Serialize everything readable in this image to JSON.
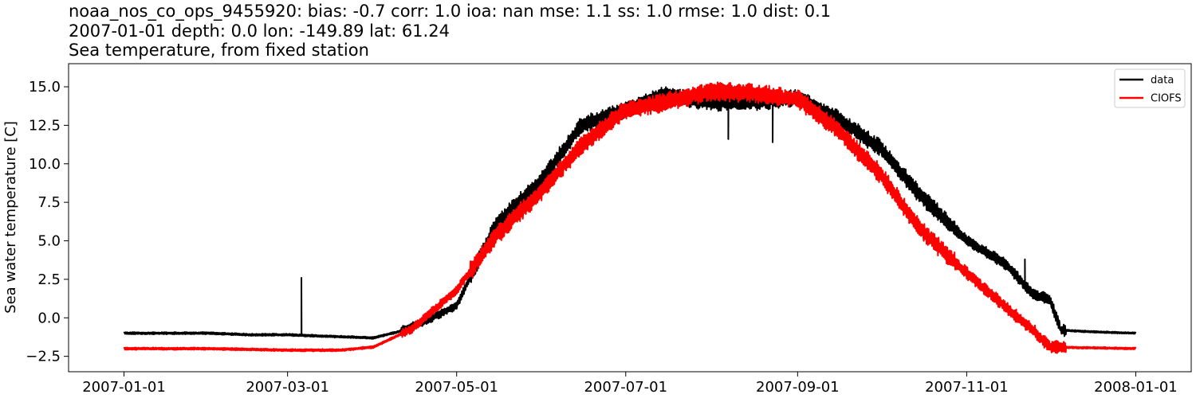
{
  "header": {
    "line1": "noaa_nos_co_ops_9455920: bias: -0.7  corr: 1.0  ioa: nan  mse: 1.1  ss: 1.0  rmse: 1.0  dist: 0.1",
    "line2": "2007-01-01 depth: 0.0 lon: -149.89 lat: 61.24",
    "line3": "Sea temperature, from fixed station"
  },
  "chart_data": {
    "type": "line",
    "title": "noaa_nos_co_ops_9455920: bias: -0.7  corr: 1.0  ioa: nan  mse: 1.1  ss: 1.0  rmse: 1.0  dist: 0.1\n2007-01-01 depth: 0.0 lon: -149.89 lat: 61.24\nSea temperature, from fixed station",
    "xlabel": "",
    "ylabel": "Sea water temperature [C]",
    "xlim": [
      "2006-12-12",
      "2008-01-21"
    ],
    "ylim": [
      -3.5,
      16.5
    ],
    "xticks": [
      "2007-01-01",
      "2007-03-01",
      "2007-05-01",
      "2007-07-01",
      "2007-09-01",
      "2007-11-01",
      "2008-01-01"
    ],
    "yticks": [
      -2.5,
      0.0,
      2.5,
      5.0,
      7.5,
      10.0,
      12.5,
      15.0
    ],
    "ytick_labels": [
      "−2.5",
      "0.0",
      "2.5",
      "5.0",
      "7.5",
      "10.0",
      "12.5",
      "15.0"
    ],
    "grid": false,
    "legend": {
      "position": "top-right",
      "entries": [
        "data",
        "CIOFS"
      ]
    },
    "series": [
      {
        "name": "data",
        "color": "#000000",
        "x": [
          "2007-01-01",
          "2007-01-15",
          "2007-02-01",
          "2007-02-15",
          "2007-03-01",
          "2007-03-15",
          "2007-04-01",
          "2007-04-10",
          "2007-04-20",
          "2007-05-01",
          "2007-05-15",
          "2007-06-01",
          "2007-06-15",
          "2007-07-01",
          "2007-07-15",
          "2007-08-01",
          "2007-08-15",
          "2007-09-01",
          "2007-09-15",
          "2007-10-01",
          "2007-10-15",
          "2007-11-01",
          "2007-11-15",
          "2007-11-25",
          "2007-12-01",
          "2007-12-05",
          "2007-12-15",
          "2008-01-01"
        ],
        "y": [
          -1.0,
          -1.0,
          -1.0,
          -1.1,
          -1.1,
          -1.2,
          -1.3,
          -0.9,
          -0.2,
          0.8,
          6.0,
          9.0,
          12.5,
          13.5,
          14.5,
          14.0,
          14.0,
          14.3,
          13.0,
          11.0,
          8.0,
          5.0,
          3.5,
          1.5,
          1.2,
          -0.8,
          -0.9,
          -1.0
        ],
        "spikes": [
          {
            "x": "2007-03-06",
            "y": 2.6
          },
          {
            "x": "2007-08-07",
            "y": 11.6
          },
          {
            "x": "2007-08-23",
            "y": 11.4
          },
          {
            "x": "2007-11-22",
            "y": 3.8
          }
        ]
      },
      {
        "name": "CIOFS",
        "color": "#ff0000",
        "x": [
          "2007-01-01",
          "2007-02-01",
          "2007-03-01",
          "2007-03-20",
          "2007-04-01",
          "2007-04-15",
          "2007-05-01",
          "2007-05-15",
          "2007-06-01",
          "2007-06-15",
          "2007-07-01",
          "2007-07-15",
          "2007-08-01",
          "2007-08-15",
          "2007-09-01",
          "2007-09-15",
          "2007-10-01",
          "2007-10-15",
          "2007-11-01",
          "2007-11-15",
          "2007-11-25",
          "2007-12-01",
          "2008-01-01"
        ],
        "y": [
          -2.0,
          -2.0,
          -2.1,
          -2.1,
          -1.9,
          -0.7,
          1.8,
          5.3,
          8.3,
          11.2,
          13.5,
          14.0,
          14.7,
          14.6,
          14.2,
          12.3,
          9.3,
          5.8,
          2.9,
          0.7,
          -0.8,
          -1.9,
          -2.0
        ]
      }
    ]
  }
}
